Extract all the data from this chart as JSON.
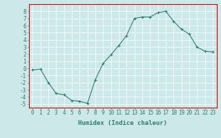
{
  "x": [
    0,
    1,
    2,
    3,
    4,
    5,
    6,
    7,
    8,
    9,
    10,
    11,
    12,
    13,
    14,
    15,
    16,
    17,
    18,
    19,
    20,
    21,
    22,
    23
  ],
  "y": [
    -0.2,
    -0.1,
    -2.0,
    -3.5,
    -3.7,
    -4.5,
    -4.6,
    -4.9,
    -1.6,
    0.7,
    1.9,
    3.2,
    4.6,
    7.0,
    7.2,
    7.2,
    7.8,
    8.0,
    6.6,
    5.5,
    4.8,
    3.0,
    2.4,
    2.3
  ],
  "xlabel": "Humidex (Indice chaleur)",
  "ylim": [
    -5.5,
    9.0
  ],
  "xlim": [
    -0.5,
    23.5
  ],
  "yticks": [
    -5,
    -4,
    -3,
    -2,
    -1,
    0,
    1,
    2,
    3,
    4,
    5,
    6,
    7,
    8
  ],
  "xticks": [
    0,
    1,
    2,
    3,
    4,
    5,
    6,
    7,
    8,
    9,
    10,
    11,
    12,
    13,
    14,
    15,
    16,
    17,
    18,
    19,
    20,
    21,
    22,
    23
  ],
  "line_color": "#2d7d6e",
  "marker": "+",
  "bg_color": "#cce8e8",
  "grid_color": "#ffffff",
  "spine_color": "#cc0000",
  "tick_label_color": "#2d7d6e",
  "xlabel_color": "#2d7d6e",
  "tick_fontsize": 5.5,
  "xlabel_fontsize": 6.5
}
